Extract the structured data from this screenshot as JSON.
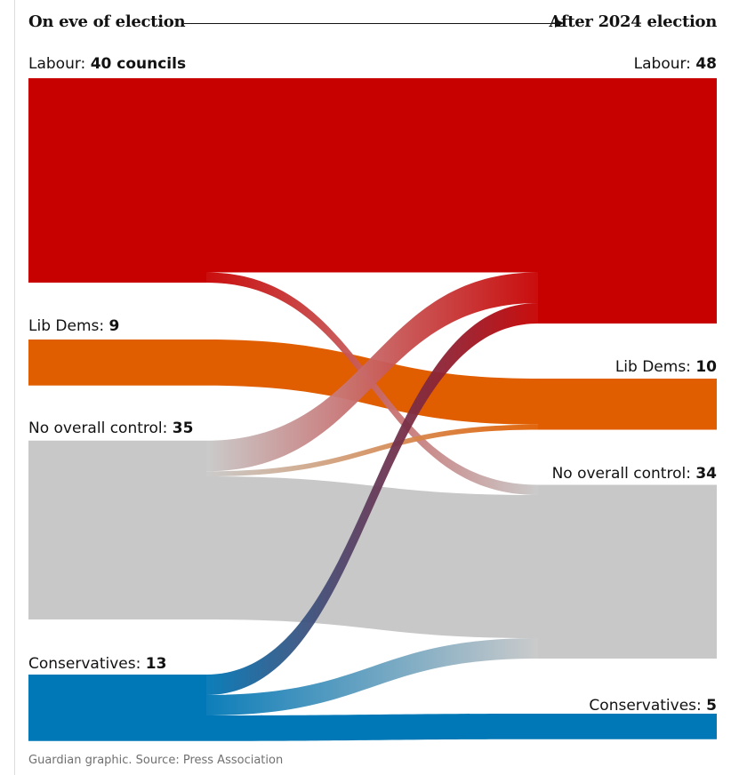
{
  "header": {
    "left_title": "On eve of election",
    "right_title": "After 2024 election"
  },
  "chart_data": {
    "type": "sankey",
    "units": "councils",
    "left_nodes": [
      {
        "key": "lab",
        "label": "Labour: ",
        "value_text": "40 councils",
        "value": 40,
        "color": "#c70000"
      },
      {
        "key": "ld",
        "label": "Lib Dems: ",
        "value_text": "9",
        "value": 9,
        "color": "#e05e00"
      },
      {
        "key": "noc",
        "label": "No overall control: ",
        "value_text": "35",
        "value": 35,
        "color": "#c8c8c8"
      },
      {
        "key": "con",
        "label": "Conservatives: ",
        "value_text": "13",
        "value": 13,
        "color": "#0077b6"
      }
    ],
    "right_nodes": [
      {
        "key": "lab",
        "label": "Labour: ",
        "value_text": "48",
        "value": 48,
        "color": "#c70000"
      },
      {
        "key": "ld",
        "label": "Lib Dems: ",
        "value_text": "10",
        "value": 10,
        "color": "#e05e00"
      },
      {
        "key": "noc",
        "label": "No overall control: ",
        "value_text": "34",
        "value": 34,
        "color": "#c8c8c8"
      },
      {
        "key": "con",
        "label": "Conservatives: ",
        "value_text": "5",
        "value": 5,
        "color": "#0077b6"
      }
    ],
    "flows": [
      {
        "from": "lab",
        "to": "lab",
        "value": 38
      },
      {
        "from": "lab",
        "to": "noc",
        "value": 2
      },
      {
        "from": "ld",
        "to": "ld",
        "value": 9
      },
      {
        "from": "noc",
        "to": "lab",
        "value": 6
      },
      {
        "from": "noc",
        "to": "ld",
        "value": 1
      },
      {
        "from": "noc",
        "to": "noc",
        "value": 28
      },
      {
        "from": "con",
        "to": "lab",
        "value": 4
      },
      {
        "from": "con",
        "to": "noc",
        "value": 4
      },
      {
        "from": "con",
        "to": "con",
        "value": 5
      }
    ]
  },
  "source": "Guardian graphic. Source: Press Association"
}
